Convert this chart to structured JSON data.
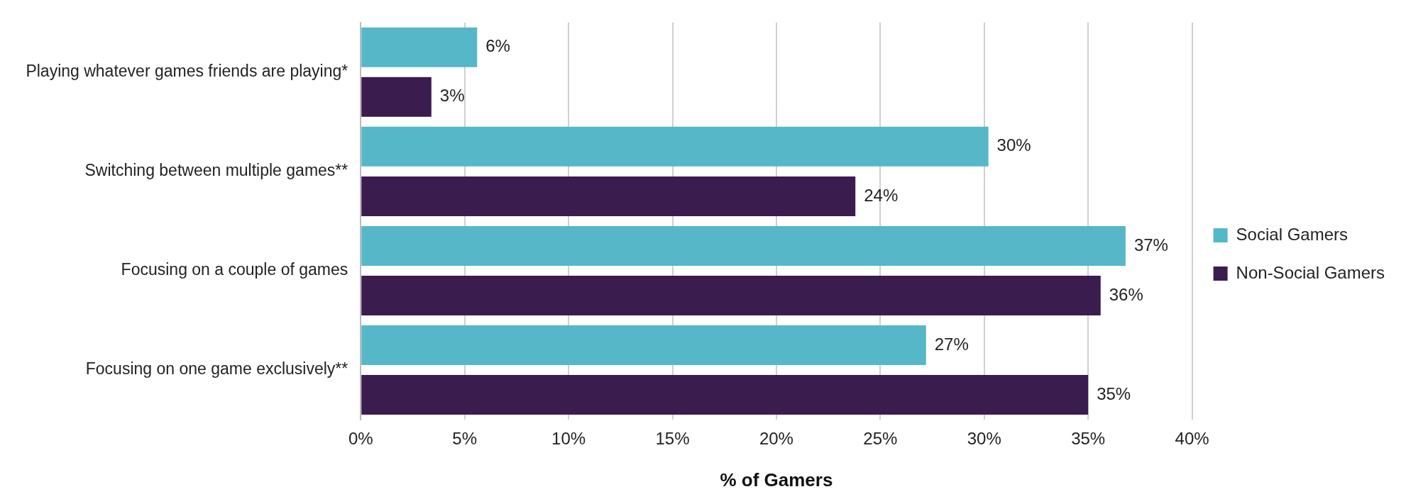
{
  "chart_data": {
    "type": "bar",
    "orientation": "horizontal",
    "xlabel": "% of Gamers",
    "categories": [
      "Playing whatever games friends are playing*",
      "Switching between multiple games**",
      "Focusing on a couple of games",
      "Focusing on one game exclusively**"
    ],
    "series": [
      {
        "name": "Social Gamers",
        "color": "#55b7c8",
        "values": [
          5.6,
          30.2,
          36.8,
          27.2
        ],
        "value_labels": [
          "6%",
          "30%",
          "37%",
          "27%"
        ]
      },
      {
        "name": "Non-Social Gamers",
        "color": "#3a1c4e",
        "values": [
          3.4,
          23.8,
          35.6,
          35.0
        ],
        "value_labels": [
          "3%",
          "24%",
          "36%",
          "35%"
        ]
      }
    ],
    "xlim": [
      0,
      40
    ],
    "xticks": [
      {
        "value": 0,
        "label": "0%"
      },
      {
        "value": 5,
        "label": "5%"
      },
      {
        "value": 10,
        "label": "10%"
      },
      {
        "value": 15,
        "label": "15%"
      },
      {
        "value": 20,
        "label": "20%"
      },
      {
        "value": 25,
        "label": "25%"
      },
      {
        "value": 30,
        "label": "30%"
      },
      {
        "value": 35,
        "label": "35%"
      },
      {
        "value": 40,
        "label": "40%"
      }
    ],
    "grid": "x",
    "legend": "right"
  }
}
